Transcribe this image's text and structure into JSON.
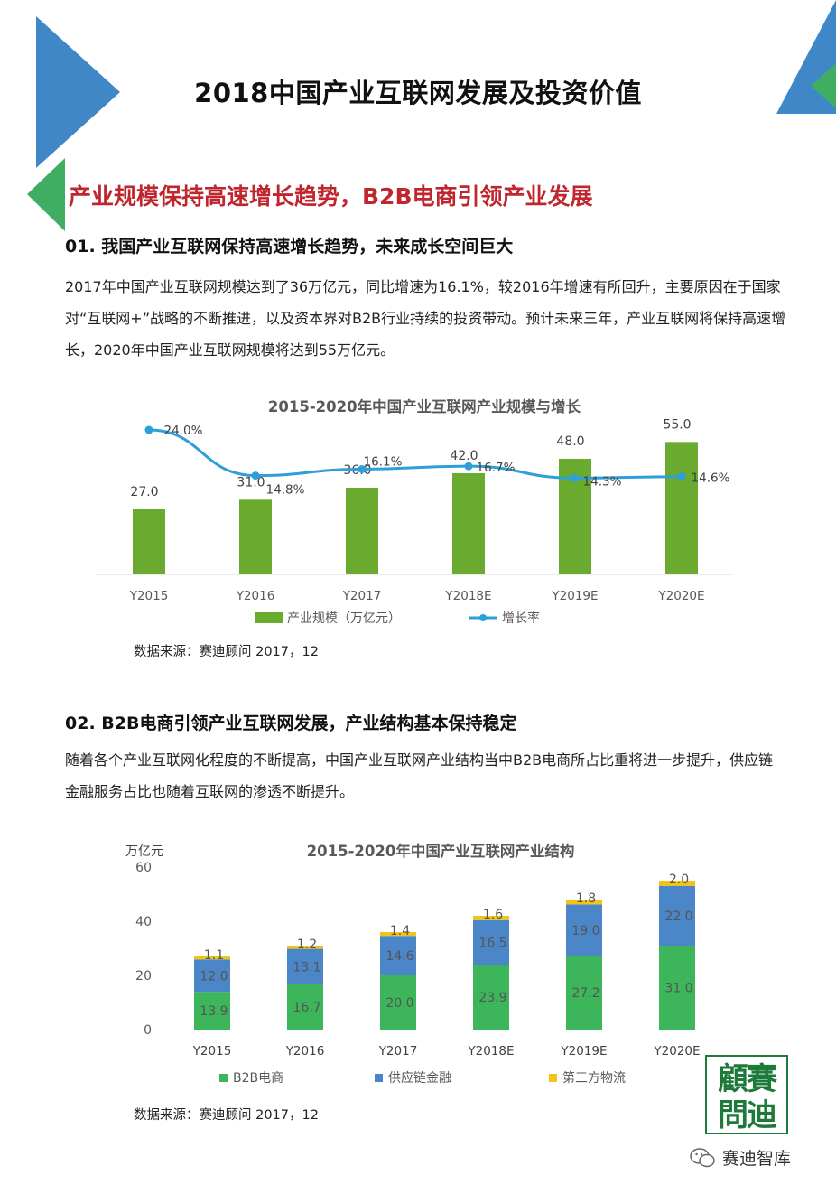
{
  "page": {
    "title": "2018中国产业互联网发展及投资价值",
    "section_heading": "产业规模保持高速增长趋势，B2B电商引领产业发展"
  },
  "section1": {
    "heading": "01. 我国产业互联网保持高速增长趋势，未来成长空间巨大",
    "paragraph": "2017年中国产业互联网规模达到了36万亿元，同比增速为16.1%，较2016年增速有所回升，主要原因在于国家对“互联网+”战略的不断推进，以及资本界对B2B行业持续的投资带动。预计未来三年，产业互联网将保持高速增长，2020年中国产业互联网规模将达到55万亿元。",
    "source": "数据来源：赛迪顾问 2017，12"
  },
  "section2": {
    "heading": "02. B2B电商引领产业互联网发展，产业结构基本保持稳定",
    "paragraph": "随着各个产业互联网化程度的不断提高，中国产业互联网产业结构当中B2B电商所占比重将进一步提升，供应链金融服务占比也随着互联网的渗透不断提升。",
    "source": "数据来源：赛迪顾问 2017，12"
  },
  "chart_data": [
    {
      "type": "bar",
      "title": "2015-2020年中国产业互联网产业规模与增长",
      "categories": [
        "Y2015",
        "Y2016",
        "Y2017",
        "Y2018E",
        "Y2019E",
        "Y2020E"
      ],
      "series": [
        {
          "name": "产业规模（万亿元）",
          "type": "bar",
          "values": [
            27.0,
            31.0,
            36.0,
            42.0,
            48.0,
            55.0
          ],
          "labels": [
            "27.0",
            "31.0",
            "36.0",
            "42.0",
            "48.0",
            "55.0"
          ],
          "color": "#6aaa2f"
        },
        {
          "name": "增长率",
          "type": "line",
          "values": [
            24.0,
            14.8,
            16.1,
            16.7,
            14.3,
            14.6
          ],
          "labels": [
            "24.0%",
            "14.8%",
            "16.1%",
            "16.7%",
            "14.3%",
            "14.6%"
          ],
          "color": "#2e9fd8"
        }
      ],
      "grid": false,
      "legend": "bottom"
    },
    {
      "type": "bar",
      "stacked": true,
      "title": "2015-2020年中国产业互联网产业结构",
      "ylabel": "万亿元",
      "ylim": [
        0,
        60
      ],
      "yticks": [
        "0",
        "20",
        "40",
        "60"
      ],
      "categories": [
        "Y2015",
        "Y2016",
        "Y2017",
        "Y2018E",
        "Y2019E",
        "Y2020E"
      ],
      "series": [
        {
          "name": "B2B电商",
          "values": [
            13.9,
            16.7,
            20.0,
            23.9,
            27.2,
            31.0
          ],
          "labels": [
            "13.9",
            "16.7",
            "20.0",
            "23.9",
            "27.2",
            "31.0"
          ],
          "color": "#3cb55b"
        },
        {
          "name": "供应链金融",
          "values": [
            12.0,
            13.1,
            14.6,
            16.5,
            19.0,
            22.0
          ],
          "labels": [
            "12.0",
            "13.1",
            "14.6",
            "16.5",
            "19.0",
            "22.0"
          ],
          "color": "#4a86c8"
        },
        {
          "name": "第三方物流",
          "values": [
            1.1,
            1.2,
            1.4,
            1.6,
            1.8,
            2.0
          ],
          "labels": [
            "1.1",
            "1.2",
            "1.4",
            "1.6",
            "1.8",
            "2.0"
          ],
          "color": "#f0c419"
        }
      ],
      "grid": false,
      "legend": "bottom"
    }
  ],
  "footer": {
    "stamp_text": "賽迪顧問",
    "brand": "赛迪智库"
  },
  "colors": {
    "accent_blue": "#3f87c6",
    "accent_green": "#3fae63",
    "heading_red": "#c0262d"
  },
  "icons": [
    "wechat-icon"
  ]
}
